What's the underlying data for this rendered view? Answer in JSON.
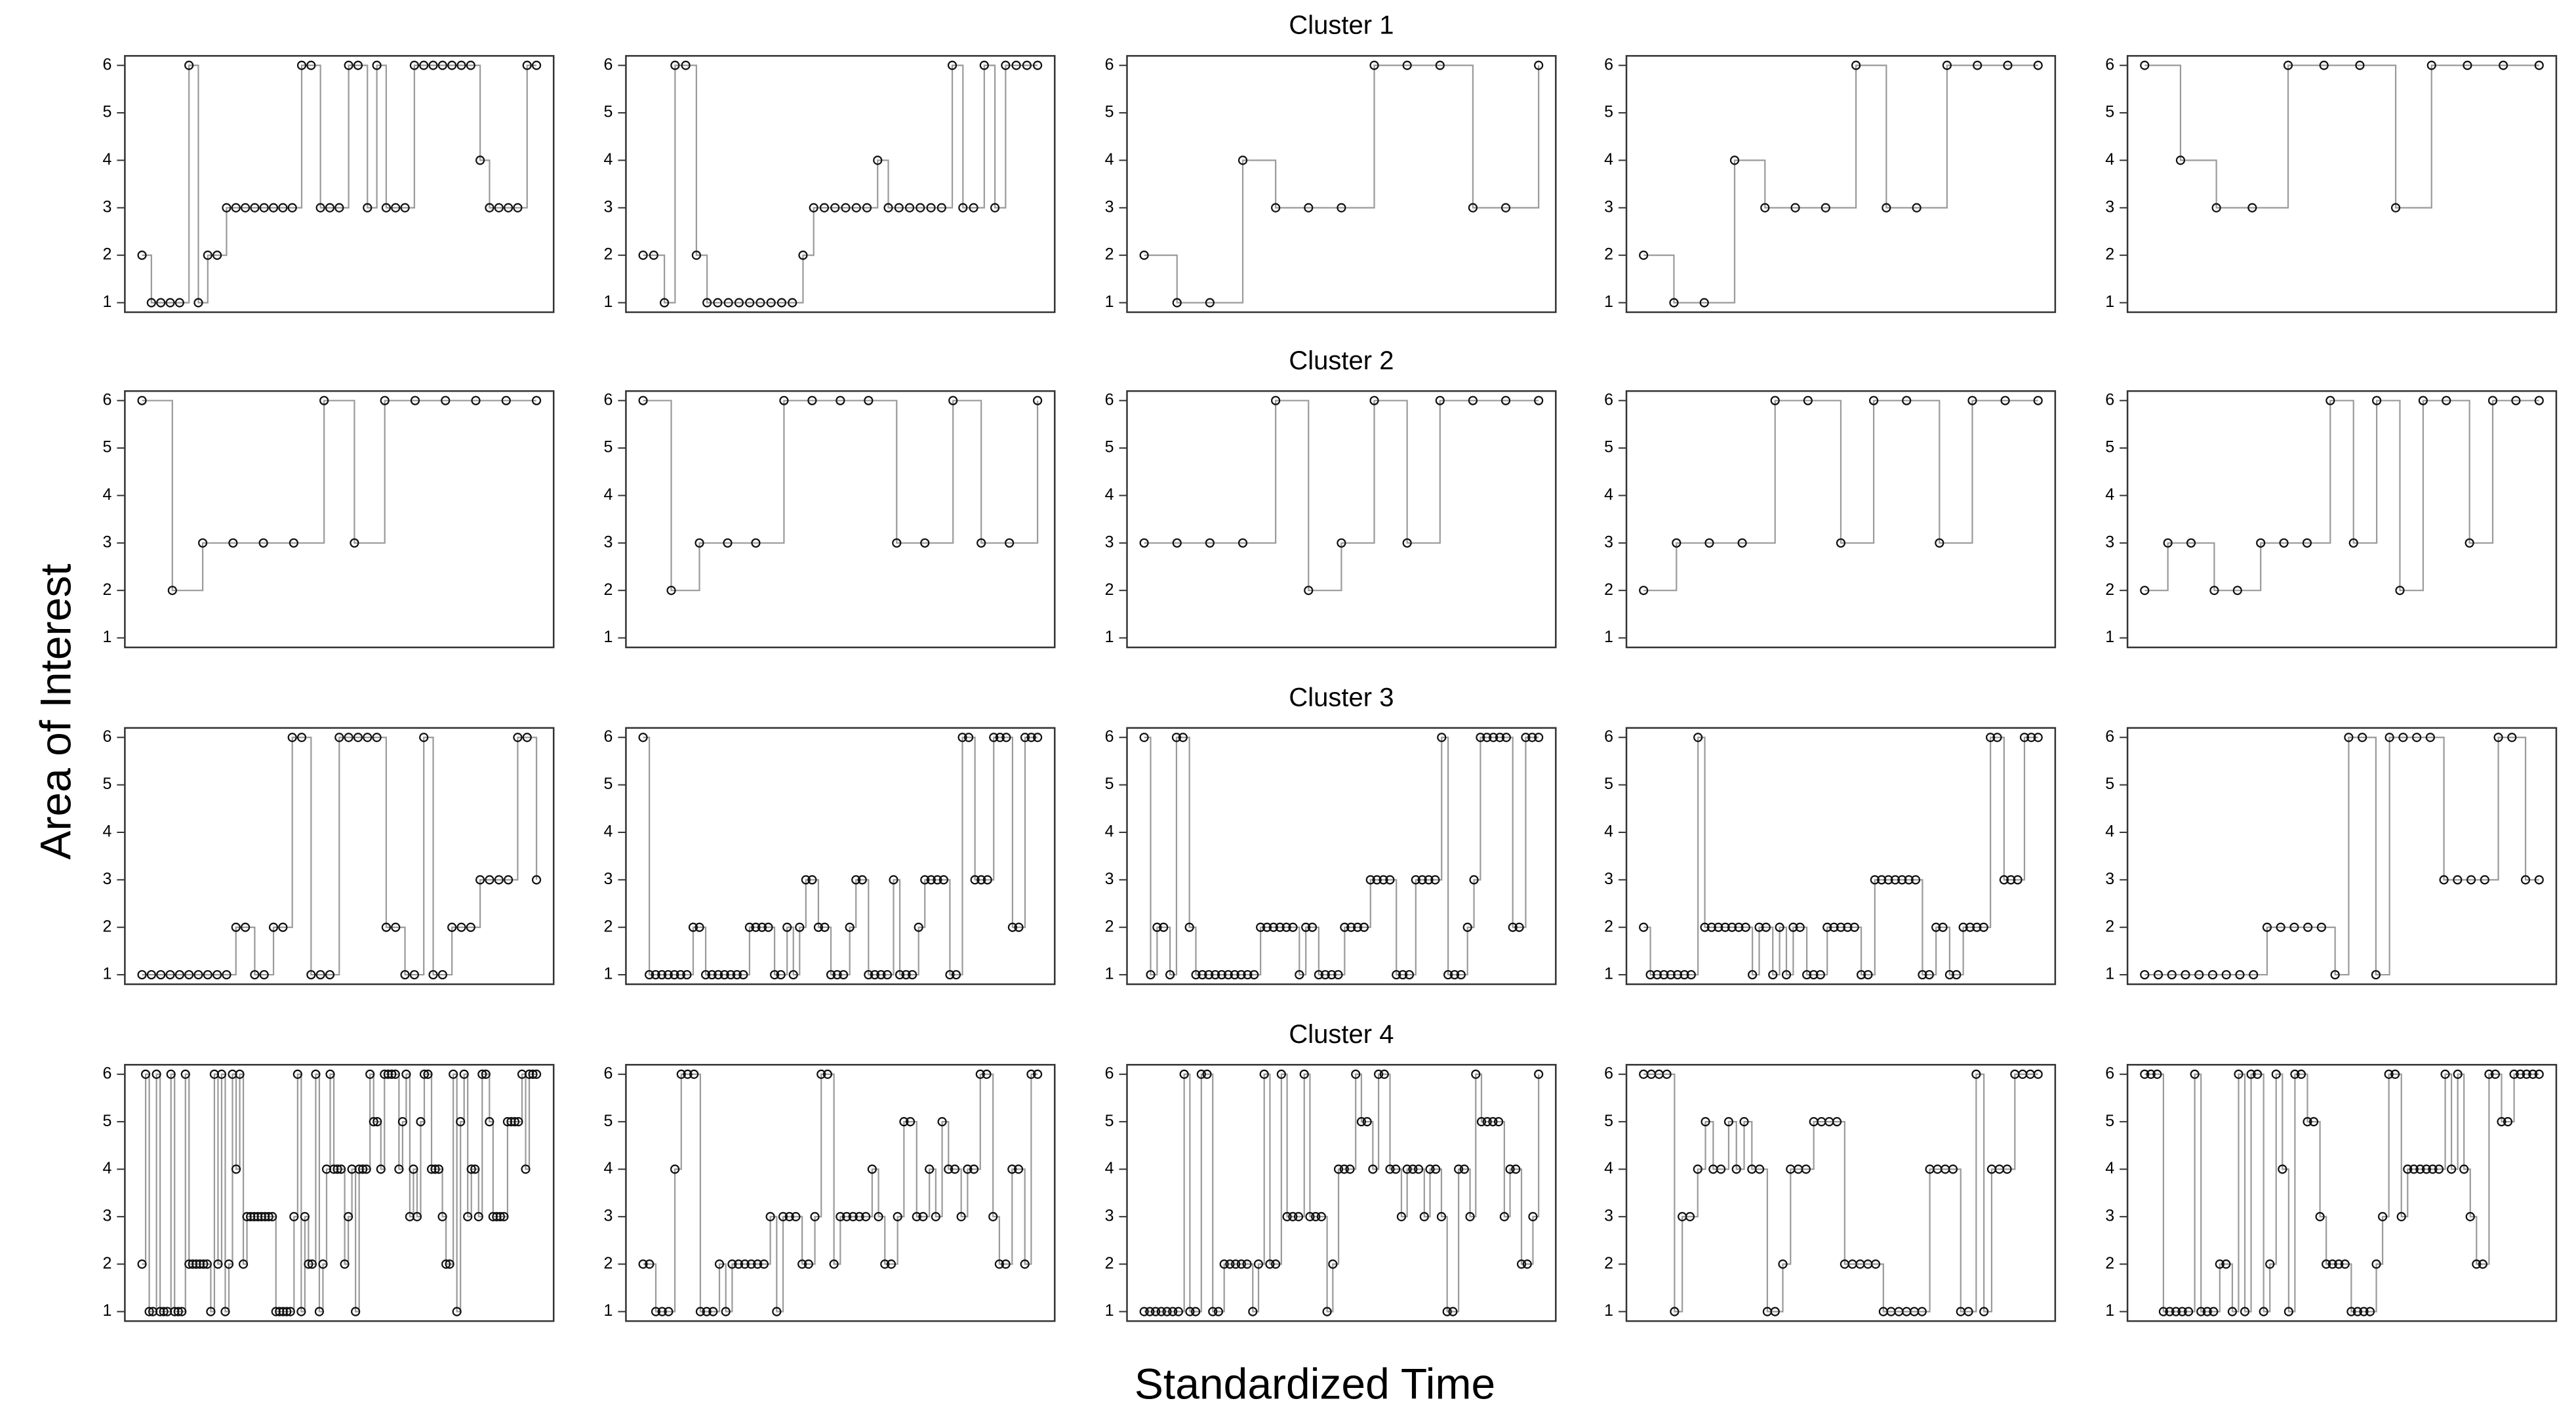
{
  "ylabel": "Area of Interest",
  "xlabel": "Standardized Time",
  "chart_data": [
    {
      "type": "step",
      "values": [
        2,
        1,
        1,
        1,
        1,
        6,
        1,
        2,
        2,
        3,
        3,
        3,
        3,
        3,
        3,
        3,
        3,
        6,
        6,
        3,
        3,
        3,
        6,
        6,
        3,
        6,
        3,
        3,
        3,
        6,
        6,
        6,
        6,
        6,
        6,
        6,
        4,
        3,
        3,
        3,
        3,
        6,
        6
      ],
      "ylim": [
        0.8,
        6.2
      ],
      "yticks": [
        1,
        2,
        3,
        4,
        5,
        6
      ]
    },
    {
      "type": "step",
      "values": [
        2,
        2,
        1,
        6,
        6,
        2,
        1,
        1,
        1,
        1,
        1,
        1,
        1,
        1,
        1,
        2,
        3,
        3,
        3,
        3,
        3,
        3,
        4,
        3,
        3,
        3,
        3,
        3,
        3,
        6,
        3,
        3,
        6,
        3,
        6,
        6,
        6,
        6
      ],
      "ylim": [
        0.8,
        6.2
      ],
      "yticks": [
        1,
        2,
        3,
        4,
        5,
        6
      ]
    },
    {
      "type": "step",
      "title": "Cluster 1",
      "values": [
        2,
        1,
        1,
        4,
        3,
        3,
        3,
        6,
        6,
        6,
        3,
        3,
        6
      ],
      "ylim": [
        0.8,
        6.2
      ],
      "yticks": [
        1,
        2,
        3,
        4,
        5,
        6
      ]
    },
    {
      "type": "step",
      "values": [
        2,
        1,
        1,
        4,
        3,
        3,
        3,
        6,
        3,
        3,
        6,
        6,
        6,
        6
      ],
      "ylim": [
        0.8,
        6.2
      ],
      "yticks": [
        1,
        2,
        3,
        4,
        5,
        6
      ]
    },
    {
      "type": "step",
      "values": [
        6,
        4,
        3,
        3,
        6,
        6,
        6,
        3,
        6,
        6,
        6,
        6
      ],
      "ylim": [
        0.8,
        6.2
      ],
      "yticks": [
        1,
        2,
        3,
        4,
        5,
        6
      ]
    },
    {
      "type": "step",
      "values": [
        6,
        2,
        3,
        3,
        3,
        3,
        6,
        3,
        6,
        6,
        6,
        6,
        6,
        6
      ],
      "ylim": [
        0.8,
        6.2
      ],
      "yticks": [
        1,
        2,
        3,
        4,
        5,
        6
      ]
    },
    {
      "type": "step",
      "values": [
        6,
        2,
        3,
        3,
        3,
        6,
        6,
        6,
        6,
        3,
        3,
        6,
        3,
        3,
        6
      ],
      "ylim": [
        0.8,
        6.2
      ],
      "yticks": [
        1,
        2,
        3,
        4,
        5,
        6
      ]
    },
    {
      "type": "step",
      "title": "Cluster 2",
      "values": [
        3,
        3,
        3,
        3,
        6,
        2,
        3,
        6,
        3,
        6,
        6,
        6,
        6
      ],
      "ylim": [
        0.8,
        6.2
      ],
      "yticks": [
        1,
        2,
        3,
        4,
        5,
        6
      ]
    },
    {
      "type": "step",
      "values": [
        2,
        3,
        3,
        3,
        6,
        6,
        3,
        6,
        6,
        3,
        6,
        6,
        6
      ],
      "ylim": [
        0.8,
        6.2
      ],
      "yticks": [
        1,
        2,
        3,
        4,
        5,
        6
      ]
    },
    {
      "type": "step",
      "values": [
        2,
        3,
        3,
        2,
        2,
        3,
        3,
        3,
        6,
        3,
        6,
        2,
        6,
        6,
        3,
        6,
        6,
        6
      ],
      "ylim": [
        0.8,
        6.2
      ],
      "yticks": [
        1,
        2,
        3,
        4,
        5,
        6
      ]
    },
    {
      "type": "step",
      "values": [
        1,
        1,
        1,
        1,
        1,
        1,
        1,
        1,
        1,
        1,
        2,
        2,
        1,
        1,
        2,
        2,
        6,
        6,
        1,
        1,
        1,
        6,
        6,
        6,
        6,
        6,
        2,
        2,
        1,
        1,
        6,
        1,
        1,
        2,
        2,
        2,
        3,
        3,
        3,
        3,
        6,
        6,
        3
      ],
      "ylim": [
        0.8,
        6.2
      ],
      "yticks": [
        1,
        2,
        3,
        4,
        5,
        6
      ]
    },
    {
      "type": "step",
      "values": [
        6,
        1,
        1,
        1,
        1,
        1,
        1,
        1,
        2,
        2,
        1,
        1,
        1,
        1,
        1,
        1,
        1,
        2,
        2,
        2,
        2,
        1,
        1,
        2,
        1,
        2,
        3,
        3,
        2,
        2,
        1,
        1,
        1,
        2,
        3,
        3,
        1,
        1,
        1,
        1,
        3,
        1,
        1,
        1,
        2,
        3,
        3,
        3,
        3,
        1,
        1,
        6,
        6,
        3,
        3,
        3,
        6,
        6,
        6,
        2,
        2,
        6,
        6,
        6
      ],
      "ylim": [
        0.8,
        6.2
      ],
      "yticks": [
        1,
        2,
        3,
        4,
        5,
        6
      ]
    },
    {
      "type": "step",
      "title": "Cluster 3",
      "values": [
        6,
        1,
        2,
        2,
        1,
        6,
        6,
        2,
        1,
        1,
        1,
        1,
        1,
        1,
        1,
        1,
        1,
        1,
        2,
        2,
        2,
        2,
        2,
        2,
        1,
        2,
        2,
        1,
        1,
        1,
        1,
        2,
        2,
        2,
        2,
        3,
        3,
        3,
        3,
        1,
        1,
        1,
        3,
        3,
        3,
        3,
        6,
        1,
        1,
        1,
        2,
        3,
        6,
        6,
        6,
        6,
        6,
        2,
        2,
        6,
        6,
        6
      ],
      "ylim": [
        0.8,
        6.2
      ],
      "yticks": [
        1,
        2,
        3,
        4,
        5,
        6
      ]
    },
    {
      "type": "step",
      "values": [
        2,
        1,
        1,
        1,
        1,
        1,
        1,
        1,
        6,
        2,
        2,
        2,
        2,
        2,
        2,
        2,
        1,
        2,
        2,
        1,
        2,
        1,
        2,
        2,
        1,
        1,
        1,
        2,
        2,
        2,
        2,
        2,
        1,
        1,
        3,
        3,
        3,
        3,
        3,
        3,
        3,
        1,
        1,
        2,
        2,
        1,
        1,
        2,
        2,
        2,
        2,
        6,
        6,
        3,
        3,
        3,
        6,
        6,
        6
      ],
      "ylim": [
        0.8,
        6.2
      ],
      "yticks": [
        1,
        2,
        3,
        4,
        5,
        6
      ]
    },
    {
      "type": "step",
      "values": [
        1,
        1,
        1,
        1,
        1,
        1,
        1,
        1,
        1,
        2,
        2,
        2,
        2,
        2,
        1,
        6,
        6,
        1,
        6,
        6,
        6,
        6,
        3,
        3,
        3,
        3,
        6,
        6,
        3,
        3
      ],
      "ylim": [
        0.8,
        6.2
      ],
      "yticks": [
        1,
        2,
        3,
        4,
        5,
        6
      ]
    },
    {
      "type": "step",
      "values": [
        2,
        6,
        1,
        1,
        6,
        1,
        1,
        1,
        6,
        1,
        1,
        1,
        6,
        2,
        2,
        2,
        2,
        2,
        2,
        1,
        6,
        2,
        6,
        1,
        2,
        6,
        4,
        6,
        2,
        3,
        3,
        3,
        3,
        3,
        3,
        3,
        3,
        1,
        1,
        1,
        1,
        1,
        3,
        6,
        1,
        3,
        2,
        2,
        6,
        1,
        2,
        4,
        6,
        4,
        4,
        4,
        2,
        3,
        4,
        1,
        4,
        4,
        4,
        6,
        5,
        5,
        4,
        6,
        6,
        6,
        6,
        4,
        5,
        6,
        3,
        4,
        3,
        5,
        6,
        6,
        4,
        4,
        4,
        3,
        2,
        2,
        6,
        1,
        5,
        6,
        3,
        4,
        4,
        3,
        6,
        6,
        5,
        3,
        3,
        3,
        3,
        5,
        5,
        5,
        5,
        6,
        4,
        6,
        6,
        6
      ],
      "ylim": [
        0.8,
        6.2
      ],
      "yticks": [
        1,
        2,
        3,
        4,
        5,
        6
      ]
    },
    {
      "type": "step",
      "values": [
        2,
        2,
        1,
        1,
        1,
        4,
        6,
        6,
        6,
        1,
        1,
        1,
        2,
        1,
        2,
        2,
        2,
        2,
        2,
        2,
        3,
        1,
        3,
        3,
        3,
        2,
        2,
        3,
        6,
        6,
        2,
        3,
        3,
        3,
        3,
        3,
        4,
        3,
        2,
        2,
        3,
        5,
        5,
        3,
        3,
        4,
        3,
        5,
        4,
        4,
        3,
        4,
        4,
        6,
        6,
        3,
        2,
        2,
        4,
        4,
        2,
        6,
        6
      ],
      "ylim": [
        0.8,
        6.2
      ],
      "yticks": [
        1,
        2,
        3,
        4,
        5,
        6
      ]
    },
    {
      "type": "step",
      "title": "Cluster 4",
      "values": [
        1,
        1,
        1,
        1,
        1,
        1,
        1,
        6,
        1,
        1,
        6,
        6,
        1,
        1,
        2,
        2,
        2,
        2,
        2,
        1,
        2,
        6,
        2,
        2,
        6,
        3,
        3,
        3,
        6,
        3,
        3,
        3,
        1,
        2,
        4,
        4,
        4,
        6,
        5,
        5,
        4,
        6,
        6,
        4,
        4,
        3,
        4,
        4,
        4,
        3,
        4,
        4,
        3,
        1,
        1,
        4,
        4,
        3,
        6,
        5,
        5,
        5,
        5,
        3,
        4,
        4,
        2,
        2,
        3,
        6
      ],
      "ylim": [
        0.8,
        6.2
      ],
      "yticks": [
        1,
        2,
        3,
        4,
        5,
        6
      ]
    },
    {
      "type": "step",
      "values": [
        6,
        6,
        6,
        6,
        1,
        3,
        3,
        4,
        5,
        4,
        4,
        5,
        4,
        5,
        4,
        4,
        1,
        1,
        2,
        4,
        4,
        4,
        5,
        5,
        5,
        5,
        2,
        2,
        2,
        2,
        2,
        1,
        1,
        1,
        1,
        1,
        1,
        4,
        4,
        4,
        4,
        1,
        1,
        6,
        1,
        4,
        4,
        4,
        6,
        6,
        6,
        6
      ],
      "ylim": [
        0.8,
        6.2
      ],
      "yticks": [
        1,
        2,
        3,
        4,
        5,
        6
      ]
    },
    {
      "type": "step",
      "values": [
        6,
        6,
        6,
        1,
        1,
        1,
        1,
        1,
        6,
        1,
        1,
        1,
        2,
        2,
        1,
        6,
        1,
        6,
        6,
        1,
        2,
        6,
        4,
        1,
        6,
        6,
        5,
        5,
        3,
        2,
        2,
        2,
        2,
        1,
        1,
        1,
        1,
        2,
        3,
        6,
        6,
        3,
        4,
        4,
        4,
        4,
        4,
        4,
        6,
        4,
        6,
        4,
        3,
        2,
        2,
        6,
        6,
        5,
        5,
        6,
        6,
        6,
        6,
        6
      ],
      "ylim": [
        0.8,
        6.2
      ],
      "yticks": [
        1,
        2,
        3,
        4,
        5,
        6
      ]
    }
  ]
}
